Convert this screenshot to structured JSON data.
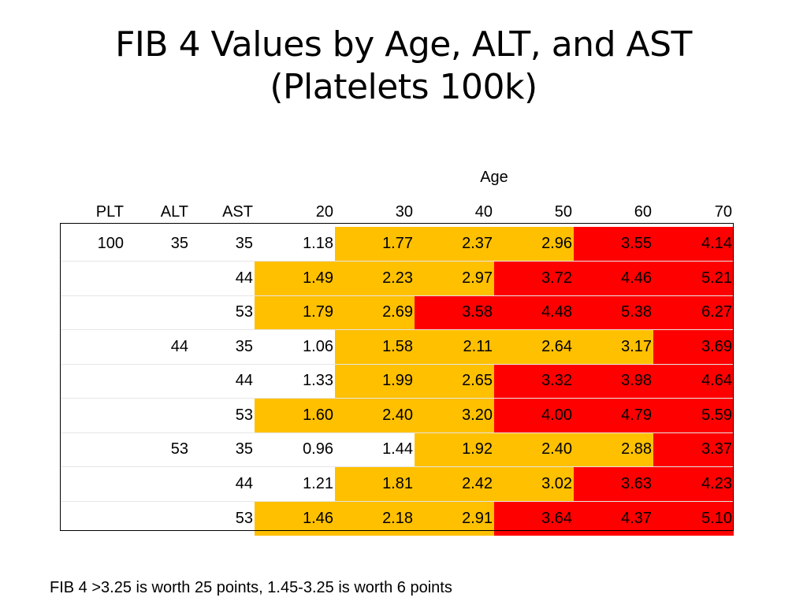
{
  "title_line1": "FIB 4 Values by Age, ALT, and AST",
  "title_line2": "(Platelets 100k)",
  "age_label": "Age",
  "colors": {
    "white": "#ffffff",
    "yellow": "#ffc000",
    "red": "#ff0000"
  },
  "chart_data": {
    "type": "table",
    "columns": [
      "PLT",
      "ALT",
      "AST",
      "20",
      "30",
      "40",
      "50",
      "60",
      "70"
    ],
    "rows": [
      {
        "plt": "100",
        "alt": "35",
        "ast": "35",
        "values": [
          "1.18",
          "1.77",
          "2.37",
          "2.96",
          "3.55",
          "4.14"
        ],
        "colors": [
          "white",
          "yellow",
          "yellow",
          "yellow",
          "red",
          "red"
        ]
      },
      {
        "plt": "",
        "alt": "",
        "ast": "44",
        "values": [
          "1.49",
          "2.23",
          "2.97",
          "3.72",
          "4.46",
          "5.21"
        ],
        "colors": [
          "yellow",
          "yellow",
          "yellow",
          "red",
          "red",
          "red"
        ]
      },
      {
        "plt": "",
        "alt": "",
        "ast": "53",
        "values": [
          "1.79",
          "2.69",
          "3.58",
          "4.48",
          "5.38",
          "6.27"
        ],
        "colors": [
          "yellow",
          "yellow",
          "red",
          "red",
          "red",
          "red"
        ]
      },
      {
        "plt": "",
        "alt": "44",
        "ast": "35",
        "values": [
          "1.06",
          "1.58",
          "2.11",
          "2.64",
          "3.17",
          "3.69"
        ],
        "colors": [
          "white",
          "yellow",
          "yellow",
          "yellow",
          "yellow",
          "red"
        ]
      },
      {
        "plt": "",
        "alt": "",
        "ast": "44",
        "values": [
          "1.33",
          "1.99",
          "2.65",
          "3.32",
          "3.98",
          "4.64"
        ],
        "colors": [
          "white",
          "yellow",
          "yellow",
          "red",
          "red",
          "red"
        ]
      },
      {
        "plt": "",
        "alt": "",
        "ast": "53",
        "values": [
          "1.60",
          "2.40",
          "3.20",
          "4.00",
          "4.79",
          "5.59"
        ],
        "colors": [
          "yellow",
          "yellow",
          "yellow",
          "red",
          "red",
          "red"
        ]
      },
      {
        "plt": "",
        "alt": "53",
        "ast": "35",
        "values": [
          "0.96",
          "1.44",
          "1.92",
          "2.40",
          "2.88",
          "3.37"
        ],
        "colors": [
          "white",
          "white",
          "yellow",
          "yellow",
          "yellow",
          "red"
        ]
      },
      {
        "plt": "",
        "alt": "",
        "ast": "44",
        "values": [
          "1.21",
          "1.81",
          "2.42",
          "3.02",
          "3.63",
          "4.23"
        ],
        "colors": [
          "white",
          "yellow",
          "yellow",
          "yellow",
          "red",
          "red"
        ]
      },
      {
        "plt": "",
        "alt": "",
        "ast": "53",
        "values": [
          "1.46",
          "2.18",
          "2.91",
          "3.64",
          "4.37",
          "5.10"
        ],
        "colors": [
          "yellow",
          "yellow",
          "yellow",
          "red",
          "red",
          "red"
        ]
      }
    ]
  },
  "footnote": "FIB 4 >3.25 is worth 25 points, 1.45-3.25 is worth 6 points"
}
